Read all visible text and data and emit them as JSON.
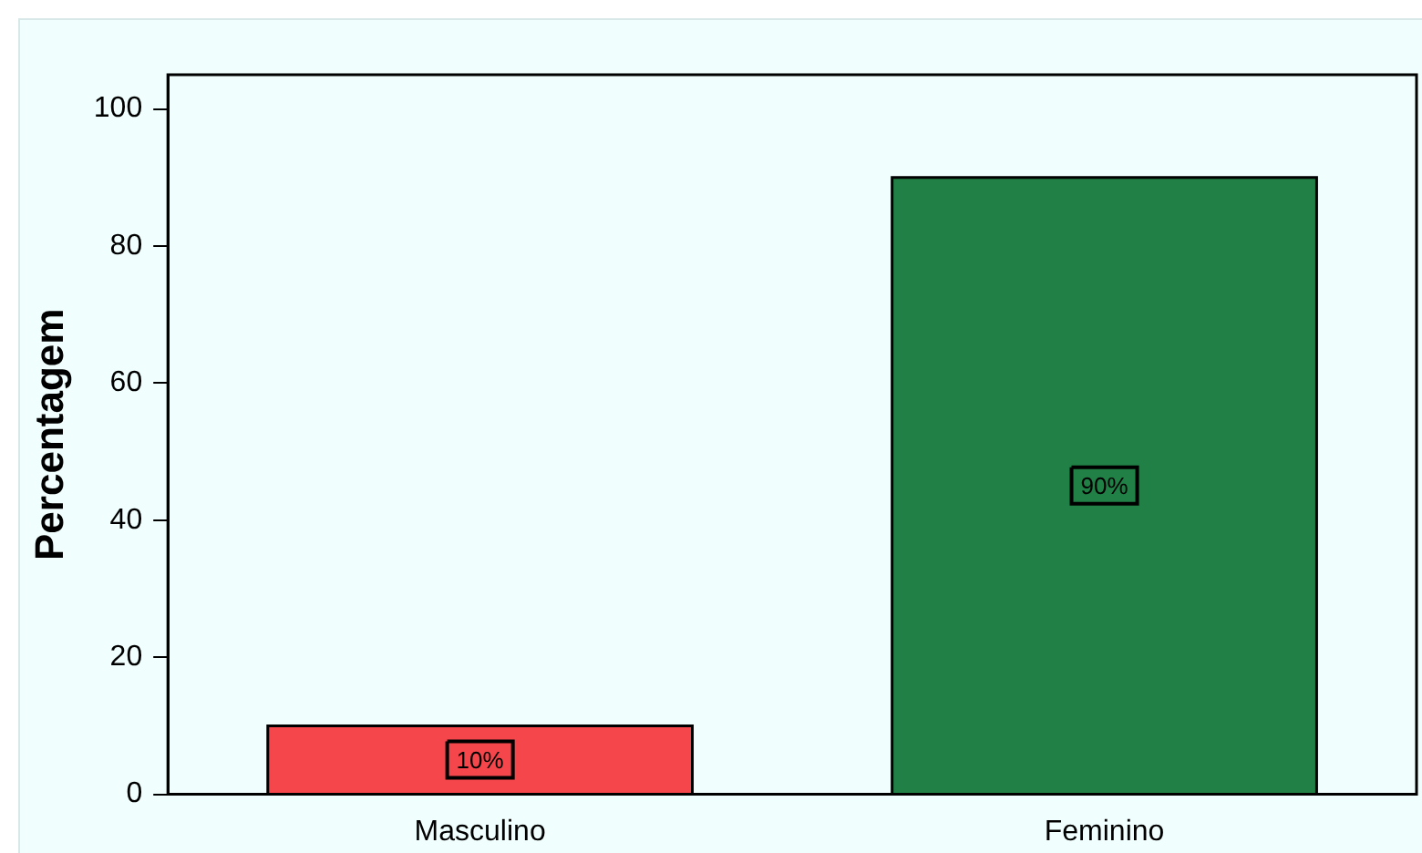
{
  "chart_data": {
    "type": "bar",
    "ylabel": "Percentagem",
    "categories": [
      "Masculino",
      "Feminino"
    ],
    "values": [
      10,
      90
    ],
    "colors": [
      "#f5474b",
      "#208046"
    ],
    "value_labels": [
      "10%",
      "90%"
    ],
    "ylim": [
      0,
      105
    ],
    "yticks": [
      0,
      20,
      40,
      60,
      80,
      100
    ],
    "grid": false,
    "legend": false
  }
}
